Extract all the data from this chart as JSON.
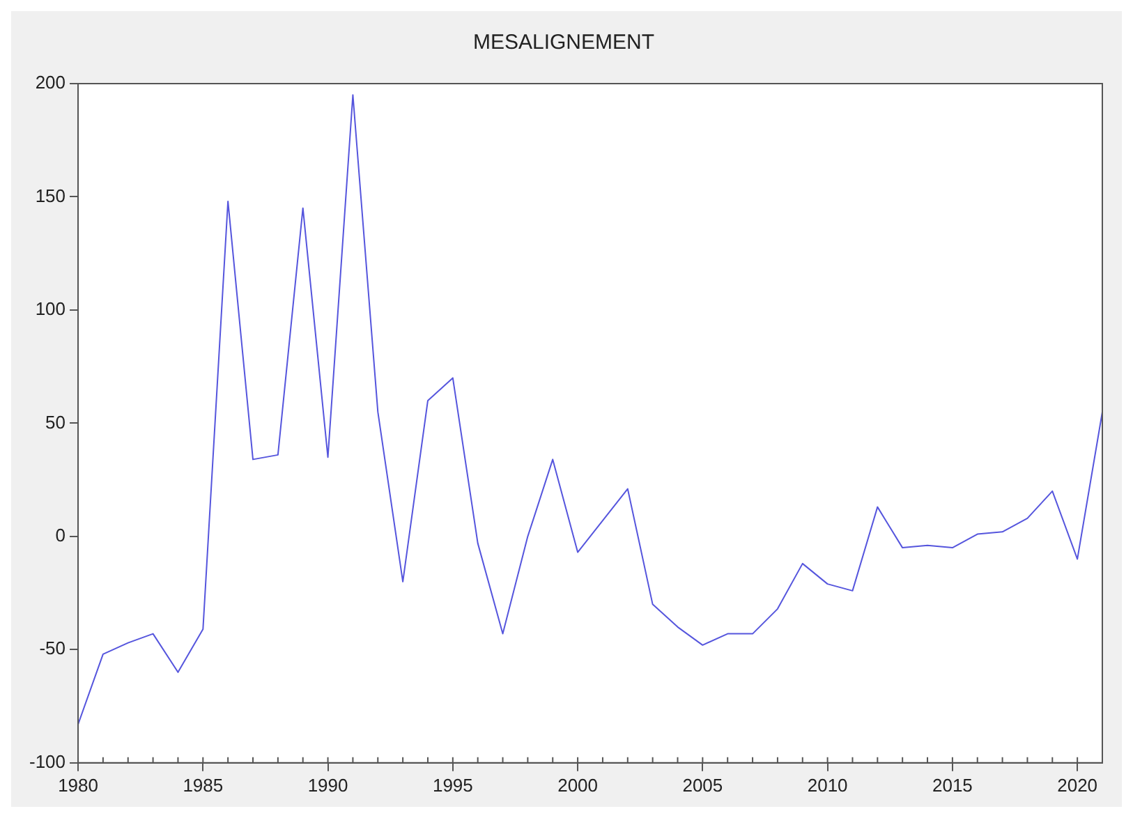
{
  "chart_data": {
    "type": "line",
    "title": "MESALIGNEMENT",
    "x": [
      1980,
      1981,
      1982,
      1983,
      1984,
      1985,
      1986,
      1987,
      1988,
      1989,
      1990,
      1991,
      1992,
      1993,
      1994,
      1995,
      1996,
      1997,
      1998,
      1999,
      2000,
      2001,
      2002,
      2003,
      2004,
      2005,
      2006,
      2007,
      2008,
      2009,
      2010,
      2011,
      2012,
      2013,
      2014,
      2015,
      2016,
      2017,
      2018,
      2019,
      2020,
      2021
    ],
    "series": [
      {
        "color": "#5555dd",
        "values": [
          -83,
          -52,
          -47,
          -43,
          -60,
          -41,
          148,
          34,
          36,
          145,
          35,
          195,
          55,
          -20,
          60,
          70,
          -3,
          -43,
          0,
          34,
          -7,
          7,
          21,
          -30,
          -40,
          -48,
          -43,
          -43,
          -32,
          -12,
          -21,
          -24,
          13,
          -5,
          -4,
          -5,
          1,
          2,
          8,
          20,
          -10,
          55
        ]
      }
    ],
    "xlim": [
      1980,
      2021
    ],
    "xticks": [
      1980,
      1985,
      1990,
      1995,
      2000,
      2005,
      2010,
      2015,
      2020
    ],
    "ylim": [
      -100,
      200
    ],
    "yticks": [
      -100,
      -50,
      0,
      50,
      100,
      150,
      200
    ],
    "grid": false,
    "legend": false,
    "marker": "none",
    "line_style": "solid"
  }
}
